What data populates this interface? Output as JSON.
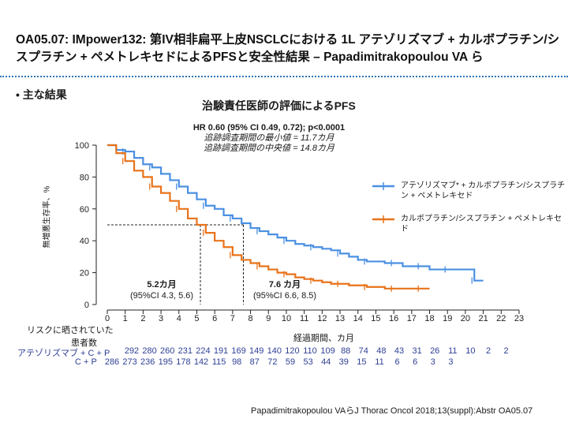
{
  "header": {
    "title": "OA05.07: IMpower132: 第IV相非扁平上皮NSCLCにおける 1L アテゾリズマブ + カルボプラチン/シスプラチン + ペメトレキセドによるPFSと安全性結果 – Papadimitrakopoulou VA ら"
  },
  "bullet": "• 主な結果",
  "chart_data": {
    "type": "line",
    "title": "治験責任医師の評価によるPFS",
    "stat_main": "HR 0.60 (95% CI 0.49, 0.72); p<0.0001",
    "stat_min": "追跡調査期間の最小値 = 11.7カ月",
    "stat_median": "追跡調査期間の中央値 = 14.8カ月",
    "ylabel": "無増悪生存率、%",
    "xlabel": "経過期間、カ月",
    "xlim": [
      0,
      23
    ],
    "ylim": [
      0,
      100
    ],
    "x_ticks": [
      0,
      1,
      2,
      3,
      4,
      5,
      6,
      7,
      8,
      9,
      10,
      11,
      12,
      13,
      14,
      15,
      16,
      17,
      18,
      19,
      20,
      21,
      22,
      23
    ],
    "y_ticks": [
      0,
      20,
      40,
      60,
      80,
      100
    ],
    "colors": {
      "blue": "#4a90e2",
      "orange": "#e8731a"
    },
    "series": [
      {
        "name": "アテゾリズマブ* + カルボプラチン/シスプラチン + ペメトレキセド",
        "color": "#4a90e2",
        "x": [
          0,
          0.5,
          1,
          1.5,
          2,
          2.5,
          3,
          3.5,
          4,
          4.5,
          5,
          5.5,
          6,
          6.5,
          7,
          7.5,
          8,
          8.5,
          9,
          9.5,
          10,
          10.5,
          11,
          11.5,
          12,
          12.5,
          13,
          13.5,
          14,
          14.5,
          15,
          15.5,
          16,
          16.5,
          17,
          17.5,
          18,
          18.5,
          19,
          19.5,
          20,
          20.5,
          21
        ],
        "y": [
          100,
          97,
          96,
          92,
          88,
          86,
          82,
          78,
          74,
          70,
          66,
          62,
          60,
          56,
          54,
          51,
          48,
          46,
          44,
          42,
          40,
          38,
          37,
          36,
          35,
          34,
          32,
          30,
          28,
          27,
          27,
          26,
          26,
          24,
          24,
          24,
          22,
          22,
          22,
          22,
          22,
          15,
          15
        ]
      },
      {
        "name": "カルボプラチン/シスプラチン + ペメトレキセド",
        "color": "#e8731a",
        "x": [
          0,
          0.5,
          1,
          1.5,
          2,
          2.5,
          3,
          3.5,
          4,
          4.5,
          5,
          5.5,
          6,
          6.5,
          7,
          7.5,
          8,
          8.5,
          9,
          9.5,
          10,
          10.5,
          11,
          11.5,
          12,
          12.5,
          13,
          13.5,
          14,
          14.5,
          15,
          15.5,
          16,
          16.5,
          17,
          17.5,
          18
        ],
        "y": [
          100,
          95,
          90,
          84,
          80,
          74,
          70,
          65,
          60,
          54,
          50,
          45,
          40,
          36,
          31,
          28,
          26,
          24,
          22,
          20,
          19,
          17,
          16,
          15,
          14,
          13,
          13,
          12,
          12,
          11,
          11,
          10,
          10,
          10,
          10,
          10,
          10
        ]
      }
    ],
    "medians": [
      {
        "label": "5.2カ月",
        "ci": "(95%CI 4.3, 5.6)",
        "x": 5.2
      },
      {
        "label": "7.6 カ月",
        "ci": "(95%CI 6.6, 8.5)",
        "x": 7.6
      }
    ]
  },
  "legend": {
    "blue_label": "アテゾリズマブ* + カルボプラチン/シスプラチン + ペメトレキセド",
    "orange_label": "カルボプラチン/シスプラチン + ペメトレキセド"
  },
  "risk_table": {
    "header_line1": "リスクに晒されていた",
    "header_line2": "患者数",
    "rows": [
      {
        "label": "アテゾリズマブ + C + P",
        "values": [
          "292",
          "280",
          "260",
          "231",
          "224",
          "191",
          "169",
          "149",
          "140",
          "120",
          "110",
          "109",
          "88",
          "74",
          "48",
          "43",
          "31",
          "26",
          "11",
          "10",
          "2",
          "2"
        ]
      },
      {
        "label": "C + P",
        "values": [
          "286",
          "273",
          "236",
          "195",
          "178",
          "142",
          "115",
          "98",
          "87",
          "72",
          "59",
          "53",
          "44",
          "39",
          "15",
          "11",
          "6",
          "6",
          "3",
          "3"
        ]
      }
    ]
  },
  "citation": "Papadimitrakopoulou VAらJ Thorac Oncol 2018;13(suppl):Abstr OA05.07"
}
